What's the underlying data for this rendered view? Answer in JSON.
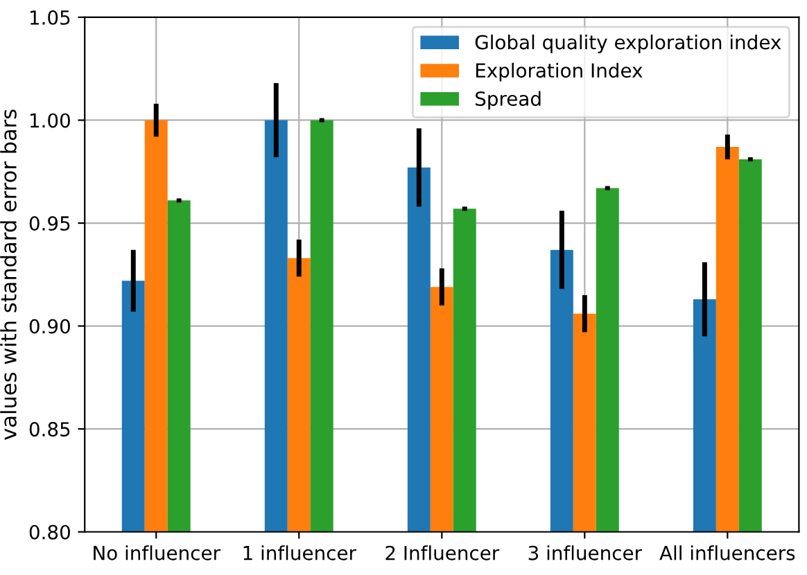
{
  "chart_data": {
    "type": "bar",
    "ylabel": "values with standard error bars",
    "categories": [
      "No influencer",
      "1 influencer",
      "2 Influencer",
      "3 influencer",
      "All influencers"
    ],
    "series": [
      {
        "name": "Global quality exploration index",
        "color": "#1f77b4",
        "values": [
          0.922,
          1.0,
          0.977,
          0.937,
          0.913
        ],
        "errors": [
          0.015,
          0.018,
          0.019,
          0.019,
          0.018
        ]
      },
      {
        "name": "Exploration Index",
        "color": "#ff7f0e",
        "values": [
          1.0,
          0.933,
          0.919,
          0.906,
          0.987
        ],
        "errors": [
          0.008,
          0.009,
          0.009,
          0.009,
          0.006
        ]
      },
      {
        "name": "Spread",
        "color": "#2ca02c",
        "values": [
          0.961,
          1.0,
          0.957,
          0.967,
          0.981
        ],
        "errors": [
          0.001,
          0.001,
          0.001,
          0.001,
          0.001
        ]
      }
    ],
    "ylim": [
      0.8,
      1.05
    ],
    "yticks": [
      {
        "value": 0.8,
        "label": "0.80"
      },
      {
        "value": 0.85,
        "label": "0.85"
      },
      {
        "value": 0.9,
        "label": "0.90"
      },
      {
        "value": 0.95,
        "label": "0.95"
      },
      {
        "value": 1.0,
        "label": "1.00"
      },
      {
        "value": 1.05,
        "label": "1.05"
      }
    ],
    "grid": true,
    "legend": "upper right"
  }
}
